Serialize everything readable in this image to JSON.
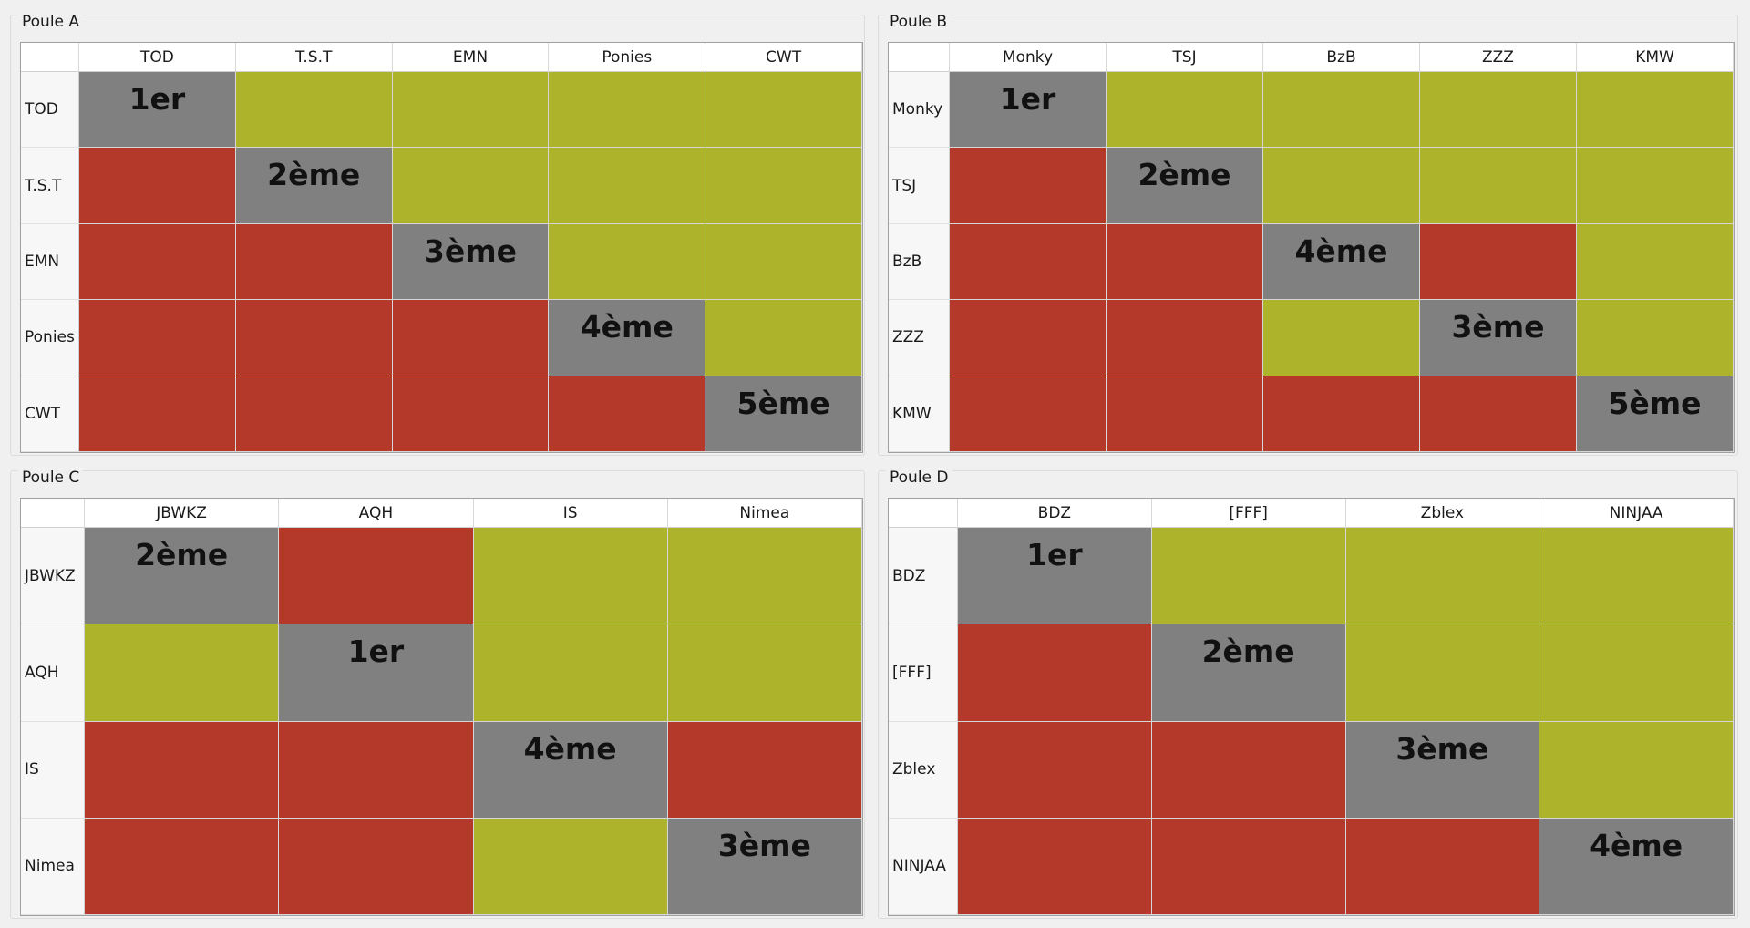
{
  "colors": {
    "win": "#adb32b",
    "loss": "#b5392b",
    "self": "#808080"
  },
  "pools": [
    {
      "title": "Poule A",
      "teams": [
        "TOD",
        "T.S.T",
        "EMN",
        "Ponies",
        "CWT"
      ],
      "ranks": [
        "1er",
        "2ème",
        "3ème",
        "4ème",
        "5ème"
      ],
      "matrix": [
        [
          "self",
          "win",
          "win",
          "win",
          "win"
        ],
        [
          "loss",
          "self",
          "win",
          "win",
          "win"
        ],
        [
          "loss",
          "loss",
          "self",
          "win",
          "win"
        ],
        [
          "loss",
          "loss",
          "loss",
          "self",
          "win"
        ],
        [
          "loss",
          "loss",
          "loss",
          "loss",
          "self"
        ]
      ]
    },
    {
      "title": "Poule B",
      "teams": [
        "Monky",
        "TSJ",
        "BzB",
        "ZZZ",
        "KMW"
      ],
      "ranks": [
        "1er",
        "2ème",
        "4ème",
        "3ème",
        "5ème"
      ],
      "matrix": [
        [
          "self",
          "win",
          "win",
          "win",
          "win"
        ],
        [
          "loss",
          "self",
          "win",
          "win",
          "win"
        ],
        [
          "loss",
          "loss",
          "self",
          "loss",
          "win"
        ],
        [
          "loss",
          "loss",
          "win",
          "self",
          "win"
        ],
        [
          "loss",
          "loss",
          "loss",
          "loss",
          "self"
        ]
      ]
    },
    {
      "title": "Poule C",
      "teams": [
        "JBWKZ",
        "AQH",
        "IS",
        "Nimea"
      ],
      "ranks": [
        "2ème",
        "1er",
        "4ème",
        "3ème"
      ],
      "matrix": [
        [
          "self",
          "loss",
          "win",
          "win"
        ],
        [
          "win",
          "self",
          "win",
          "win"
        ],
        [
          "loss",
          "loss",
          "self",
          "loss"
        ],
        [
          "loss",
          "loss",
          "win",
          "self"
        ]
      ]
    },
    {
      "title": "Poule D",
      "teams": [
        "BDZ",
        "[FFF]",
        "Zblex",
        "NINJAA"
      ],
      "ranks": [
        "1er",
        "2ème",
        "3ème",
        "4ème"
      ],
      "matrix": [
        [
          "self",
          "win",
          "win",
          "win"
        ],
        [
          "loss",
          "self",
          "win",
          "win"
        ],
        [
          "loss",
          "loss",
          "self",
          "win"
        ],
        [
          "loss",
          "loss",
          "loss",
          "self"
        ]
      ]
    }
  ]
}
